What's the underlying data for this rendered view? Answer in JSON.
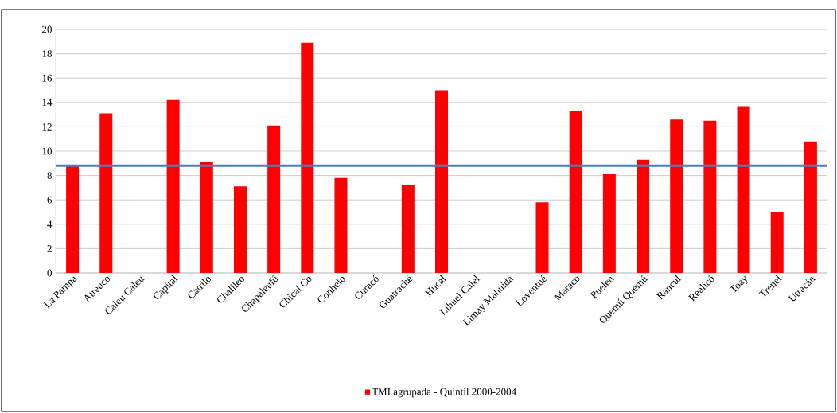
{
  "chart_data": {
    "type": "bar",
    "categories": [
      "La Pampa",
      "Atreuco",
      "Caleu Caleu",
      "Capital",
      "Catrilo",
      "Chalileo",
      "Chapaleufú",
      "Chical Co",
      "Conhelo",
      "Curacó",
      "Guatraché",
      "Hucal",
      "Lihuel Calel",
      "Limay Mahuida",
      "Loventué",
      "Maraco",
      "Puelén",
      "Quemú Quemú",
      "Rancul",
      "Realicó",
      "Toay",
      "Trenel",
      "Utracán"
    ],
    "series": [
      {
        "name": "TMI agrupada - Quintil 2000-2004",
        "color": "#ff0000",
        "values": [
          8.8,
          13.1,
          null,
          14.2,
          9.1,
          7.1,
          12.1,
          18.9,
          7.8,
          null,
          7.2,
          15.0,
          null,
          null,
          5.8,
          13.3,
          8.1,
          9.3,
          12.6,
          12.5,
          13.7,
          5.0,
          10.8
        ]
      }
    ],
    "ylim": [
      0,
      20
    ],
    "yticks": [
      0,
      2,
      4,
      6,
      8,
      10,
      12,
      14,
      16,
      18,
      20
    ],
    "ref_lines": [
      {
        "axis": "y",
        "value": 8.8,
        "color": "#4a7ebb"
      }
    ],
    "grid": "y",
    "legend": "bottom"
  }
}
